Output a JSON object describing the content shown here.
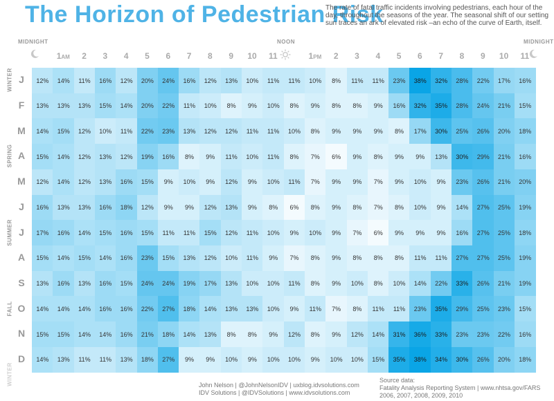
{
  "title": "The Horizon of Pedestrian Risk",
  "subtitle": "The rate of fatal traffic incidents involving pedestrians, each hour of the day, throughout the seasons of the year.  The seasonal shift of our setting sun traces an ark of elevated risk –an echo of the curve of Earth, itself.",
  "top_labels": {
    "left": "MIDNIGHT",
    "center": "NOON",
    "right": "MIDNIGHT"
  },
  "icons": {
    "moon_left": "moon-icon",
    "sun": "sun-icon",
    "moon_right": "moon-icon"
  },
  "hours": [
    {
      "num": "1",
      "suffix": "AM"
    },
    {
      "num": "2",
      "suffix": ""
    },
    {
      "num": "3",
      "suffix": ""
    },
    {
      "num": "4",
      "suffix": ""
    },
    {
      "num": "5",
      "suffix": ""
    },
    {
      "num": "6",
      "suffix": ""
    },
    {
      "num": "7",
      "suffix": ""
    },
    {
      "num": "8",
      "suffix": ""
    },
    {
      "num": "9",
      "suffix": ""
    },
    {
      "num": "10",
      "suffix": ""
    },
    {
      "num": "11",
      "suffix": ""
    },
    {
      "num": "",
      "suffix": ""
    },
    {
      "num": "1",
      "suffix": "PM"
    },
    {
      "num": "2",
      "suffix": ""
    },
    {
      "num": "3",
      "suffix": ""
    },
    {
      "num": "4",
      "suffix": ""
    },
    {
      "num": "5",
      "suffix": ""
    },
    {
      "num": "6",
      "suffix": ""
    },
    {
      "num": "7",
      "suffix": ""
    },
    {
      "num": "8",
      "suffix": ""
    },
    {
      "num": "9",
      "suffix": ""
    },
    {
      "num": "10",
      "suffix": ""
    },
    {
      "num": "11",
      "suffix": ""
    },
    {
      "num": "",
      "suffix": ""
    }
  ],
  "seasons": [
    {
      "label": "WINTER",
      "row": 0,
      "faint": false
    },
    {
      "label": "SPRING",
      "row": 3,
      "faint": false
    },
    {
      "label": "SUMMER",
      "row": 6,
      "faint": false
    },
    {
      "label": "FALL",
      "row": 9,
      "faint": false
    },
    {
      "label": "WINTER",
      "row": 11.6,
      "faint": true
    }
  ],
  "footer": {
    "credit_line1": "John Nelson  |  @JohnNelsonIDV  |  uxblog.idvsolutions.com",
    "credit_line2": "IDV Solutions  |  @IDVSolutions  |  www.idvsolutions.com",
    "source_title": "Source data:",
    "source_line1": "Fatality Analysis Reporting System  |  www.nhtsa.gov/FARS",
    "source_line2": "2006, 2007, 2008, 2009, 2010"
  },
  "colors": {
    "title": "#4fb3e6",
    "cell_low": "#f4fbfe",
    "cell_high": "#0aa5e6"
  },
  "chart_data": {
    "type": "heatmap",
    "title": "The Horizon of Pedestrian Risk",
    "months": [
      "J",
      "F",
      "M",
      "A",
      "M",
      "J",
      "J",
      "A",
      "S",
      "O",
      "N",
      "D"
    ],
    "hour_columns": [
      "12AM",
      "1AM",
      "2",
      "3",
      "4",
      "5",
      "6",
      "7",
      "8",
      "9",
      "10",
      "11",
      "12PM",
      "1PM",
      "2",
      "3",
      "4",
      "5",
      "6",
      "7",
      "8",
      "9",
      "10",
      "11"
    ],
    "unit": "%",
    "values": [
      [
        12,
        14,
        11,
        16,
        12,
        20,
        24,
        16,
        12,
        13,
        10,
        11,
        11,
        10,
        8,
        11,
        11,
        23,
        38,
        32,
        28,
        22,
        17,
        16
      ],
      [
        13,
        13,
        13,
        15,
        14,
        20,
        22,
        11,
        10,
        8,
        9,
        10,
        8,
        9,
        8,
        8,
        9,
        16,
        32,
        35,
        28,
        24,
        21,
        15
      ],
      [
        14,
        15,
        12,
        10,
        11,
        22,
        23,
        13,
        12,
        12,
        11,
        11,
        10,
        8,
        9,
        9,
        9,
        8,
        17,
        30,
        25,
        26,
        20,
        18
      ],
      [
        15,
        14,
        12,
        13,
        12,
        19,
        16,
        8,
        9,
        11,
        10,
        11,
        8,
        7,
        6,
        9,
        8,
        9,
        9,
        13,
        30,
        29,
        21,
        16
      ],
      [
        12,
        14,
        12,
        13,
        16,
        15,
        9,
        10,
        9,
        12,
        9,
        10,
        11,
        7,
        9,
        9,
        7,
        9,
        10,
        9,
        23,
        26,
        21,
        20
      ],
      [
        16,
        13,
        13,
        16,
        18,
        12,
        9,
        9,
        12,
        13,
        9,
        8,
        6,
        8,
        9,
        8,
        7,
        8,
        10,
        9,
        14,
        27,
        25,
        19
      ],
      [
        17,
        16,
        14,
        15,
        16,
        15,
        11,
        11,
        15,
        12,
        11,
        10,
        9,
        10,
        9,
        7,
        6,
        9,
        9,
        9,
        16,
        27,
        25,
        18
      ],
      [
        15,
        14,
        15,
        14,
        16,
        23,
        15,
        13,
        12,
        10,
        11,
        9,
        7,
        8,
        9,
        8,
        8,
        8,
        11,
        11,
        27,
        27,
        25,
        19
      ],
      [
        13,
        16,
        13,
        16,
        15,
        24,
        24,
        19,
        17,
        13,
        10,
        10,
        11,
        8,
        9,
        10,
        8,
        10,
        14,
        22,
        33,
        26,
        21,
        19
      ],
      [
        14,
        14,
        14,
        16,
        16,
        22,
        27,
        18,
        14,
        13,
        13,
        10,
        9,
        11,
        7,
        8,
        11,
        11,
        23,
        35,
        29,
        25,
        23,
        15
      ],
      [
        15,
        15,
        14,
        14,
        16,
        21,
        18,
        14,
        13,
        8,
        8,
        9,
        12,
        8,
        9,
        12,
        14,
        31,
        36,
        33,
        23,
        23,
        22,
        16
      ],
      [
        14,
        13,
        11,
        11,
        13,
        18,
        27,
        9,
        9,
        10,
        9,
        10,
        10,
        9,
        10,
        10,
        15,
        35,
        38,
        34,
        30,
        26,
        20,
        18
      ]
    ]
  }
}
